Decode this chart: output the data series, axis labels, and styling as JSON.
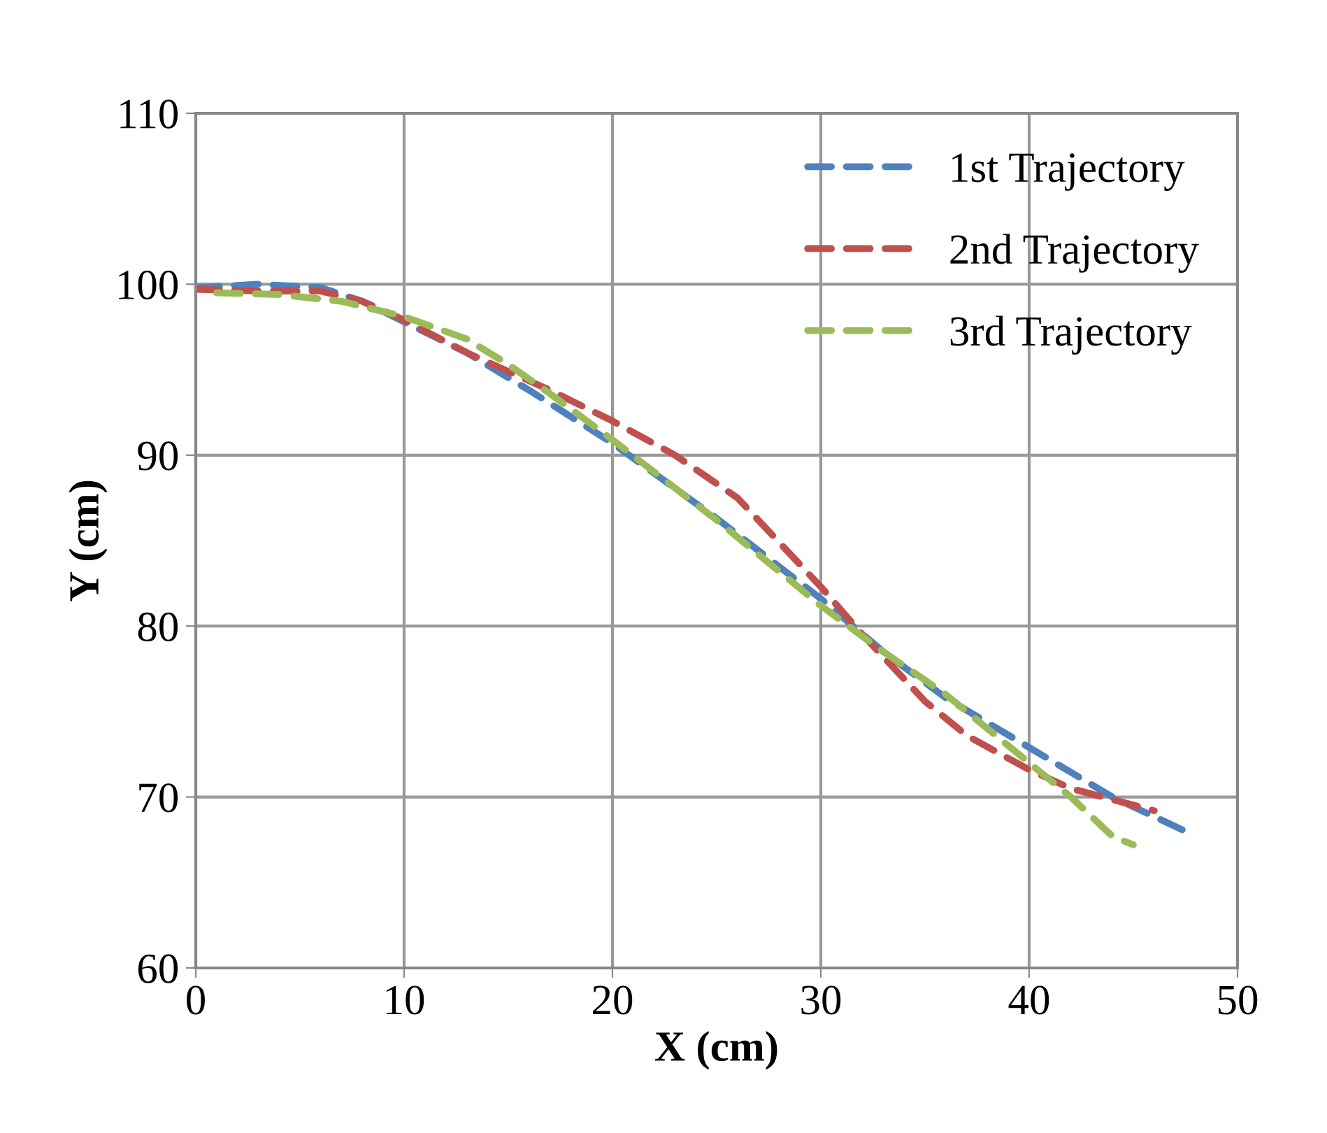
{
  "chart_data": {
    "type": "line",
    "xlabel": "X (cm)",
    "ylabel": "Y (cm)",
    "xlim": [
      0,
      50
    ],
    "ylim": [
      60,
      110
    ],
    "xticks": [
      0,
      10,
      20,
      30,
      40,
      50
    ],
    "yticks": [
      60,
      70,
      80,
      90,
      100,
      110
    ],
    "grid": true,
    "legend": "top right",
    "line_style": "dashed",
    "marker": "none",
    "series": [
      {
        "name": "1st Trajectory",
        "color": "#4f81bd",
        "x": [
          0,
          3,
          6,
          8,
          10,
          13,
          16,
          20,
          25,
          30,
          33,
          36,
          40,
          44,
          47.5
        ],
        "values": [
          99.8,
          100,
          99.8,
          99,
          97.8,
          96,
          93.8,
          90.7,
          86.3,
          81.6,
          78.5,
          75.8,
          72.9,
          70,
          68
        ]
      },
      {
        "name": "2nd Trajectory",
        "color": "#c0504d",
        "x": [
          0,
          3,
          6,
          8,
          10,
          13,
          17,
          20,
          23,
          26,
          30,
          32,
          35,
          37,
          40,
          42,
          46
        ],
        "values": [
          99.7,
          99.6,
          99.6,
          99,
          97.9,
          96,
          93.8,
          92,
          90,
          87.5,
          82.3,
          79.5,
          75.6,
          73.6,
          71.6,
          70.5,
          69.2
        ]
      },
      {
        "name": "3rd Trajectory",
        "color": "#9bbb59",
        "x": [
          1,
          4,
          7,
          10,
          13,
          15,
          17,
          20,
          25,
          30,
          33,
          36,
          40,
          42,
          44,
          45
        ],
        "values": [
          99.5,
          99.4,
          99,
          98.1,
          96.8,
          95.3,
          93.6,
          90.9,
          86.2,
          81.2,
          78.5,
          76,
          72,
          70,
          67.7,
          67.2
        ]
      }
    ]
  }
}
